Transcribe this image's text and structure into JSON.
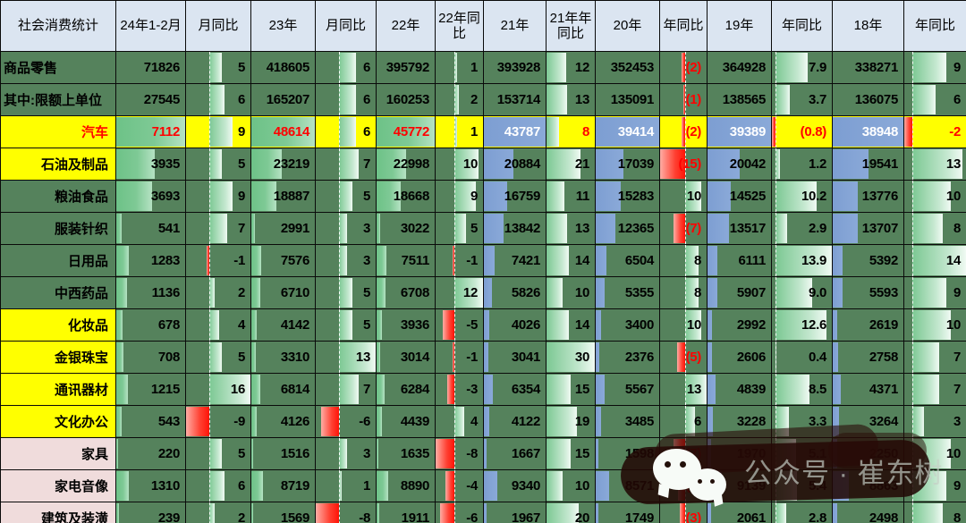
{
  "chart_data": {
    "type": "table",
    "title": "社会消费统计",
    "columns": [
      "社会消费统计",
      "24年1-2月",
      "月同比",
      "23年",
      "月同比",
      "22年",
      "22年同比",
      "21年",
      "21年年同比",
      "20年",
      "年同比",
      "19年",
      "年同比",
      "18年",
      "年同比"
    ],
    "rows": [
      {
        "label": "商品零售",
        "label_bg": "green",
        "label_align": "left",
        "highlight": false,
        "values": [
          "71826",
          "5",
          "418605",
          "6",
          "395792",
          "1",
          "393928",
          "12",
          "352453",
          "(2)",
          "364928",
          "7.9",
          "338271",
          "9"
        ]
      },
      {
        "label": "其中:限额上单位",
        "label_bg": "green",
        "label_align": "left",
        "highlight": false,
        "values": [
          "27545",
          "6",
          "165207",
          "6",
          "160253",
          "2",
          "153714",
          "13",
          "135091",
          "(1)",
          "138565",
          "3.7",
          "136075",
          "6"
        ]
      },
      {
        "label": "汽车",
        "label_bg": "yellow",
        "label_color": "red",
        "label_align": "right",
        "highlight": true,
        "values": [
          "7112",
          "9",
          "48614",
          "6",
          "45772",
          "1",
          "43787",
          "8",
          "39414",
          "(2)",
          "39389",
          "(0.8)",
          "38948",
          "-2"
        ]
      },
      {
        "label": "石油及制品",
        "label_bg": "yellow",
        "label_align": "right",
        "highlight": false,
        "values": [
          "3935",
          "5",
          "23219",
          "7",
          "22998",
          "10",
          "20884",
          "21",
          "17039",
          "(15)",
          "20042",
          "1.2",
          "19541",
          "13"
        ]
      },
      {
        "label": "粮油食品",
        "label_bg": "green",
        "label_align": "right",
        "highlight": false,
        "values": [
          "3693",
          "9",
          "18887",
          "5",
          "18668",
          "9",
          "16759",
          "11",
          "15283",
          "10",
          "14525",
          "10.2",
          "13776",
          "10"
        ]
      },
      {
        "label": "服装针织",
        "label_bg": "green",
        "label_align": "right",
        "highlight": false,
        "values": [
          "541",
          "7",
          "2991",
          "3",
          "3022",
          "5",
          "13842",
          "13",
          "12365",
          "(7)",
          "13517",
          "2.9",
          "13707",
          "8"
        ]
      },
      {
        "label": "日用品",
        "label_bg": "green",
        "label_align": "right",
        "highlight": false,
        "values": [
          "1283",
          "-1",
          "7576",
          "3",
          "7511",
          "-1",
          "7421",
          "14",
          "6504",
          "8",
          "6111",
          "13.9",
          "5392",
          "14"
        ]
      },
      {
        "label": "中西药品",
        "label_bg": "green",
        "label_align": "right",
        "highlight": false,
        "values": [
          "1136",
          "2",
          "6710",
          "5",
          "6708",
          "12",
          "5826",
          "10",
          "5355",
          "8",
          "5907",
          "9.0",
          "5593",
          "9"
        ]
      },
      {
        "label": "化妆品",
        "label_bg": "yellow",
        "label_align": "right",
        "highlight": false,
        "values": [
          "678",
          "4",
          "4142",
          "5",
          "3936",
          "-5",
          "4026",
          "14",
          "3400",
          "10",
          "2992",
          "12.6",
          "2619",
          "10"
        ]
      },
      {
        "label": "金银珠宝",
        "label_bg": "yellow",
        "label_align": "right",
        "highlight": false,
        "values": [
          "708",
          "5",
          "3310",
          "13",
          "3014",
          "-1",
          "3041",
          "30",
          "2376",
          "(5)",
          "2606",
          "0.4",
          "2758",
          "7"
        ]
      },
      {
        "label": "通讯器材",
        "label_bg": "yellow",
        "label_align": "right",
        "highlight": false,
        "values": [
          "1215",
          "16",
          "6814",
          "7",
          "6284",
          "-3",
          "6354",
          "15",
          "5567",
          "13",
          "4839",
          "8.5",
          "4371",
          "7"
        ]
      },
      {
        "label": "文化办公",
        "label_bg": "yellow",
        "label_align": "right",
        "highlight": false,
        "values": [
          "543",
          "-9",
          "4126",
          "-6",
          "4439",
          "4",
          "4122",
          "19",
          "3485",
          "6",
          "3228",
          "3.3",
          "3264",
          "3"
        ]
      },
      {
        "label": "家具",
        "label_bg": "pink",
        "label_align": "right",
        "highlight": false,
        "values": [
          "220",
          "5",
          "1516",
          "3",
          "1635",
          "-8",
          "1667",
          "15",
          "1598",
          "(7)",
          "1970",
          "5.1",
          "2250",
          "10"
        ]
      },
      {
        "label": "家电音像",
        "label_bg": "pink",
        "label_align": "right",
        "highlight": false,
        "values": [
          "1310",
          "6",
          "8719",
          "1",
          "8890",
          "-4",
          "9340",
          "10",
          "8571",
          "(4)",
          "9139",
          "5.4",
          "8863",
          "9"
        ]
      },
      {
        "label": "建筑及装潢",
        "label_bg": "pink",
        "label_align": "right",
        "highlight": false,
        "values": [
          "239",
          "2",
          "1569",
          "-8",
          "1911",
          "-6",
          "1967",
          "20",
          "1749",
          "(3)",
          "2061",
          "2.8",
          "2498",
          "8"
        ]
      }
    ],
    "legend_notes": "green bars = value magnitude, blue bars = 2018-2021 values, red bars = negative YoY, values in parentheses are negative (red)"
  },
  "watermark": {
    "text": "公众号 · 崔东树",
    "icon": "wechat-icon"
  },
  "colors": {
    "body_green": "#55825c",
    "row_yellow": "#ffff00",
    "label_pink": "#f0dcdc",
    "header_blue": "#dbe5f1",
    "bar_green": "#6dc287",
    "bar_blue": "#7d9ed2",
    "bar_red": "#ff1407",
    "negative_text": "#ff0000",
    "auto_value_text": "#ff0000",
    "auto_bluecell_text": "#ffffff"
  }
}
